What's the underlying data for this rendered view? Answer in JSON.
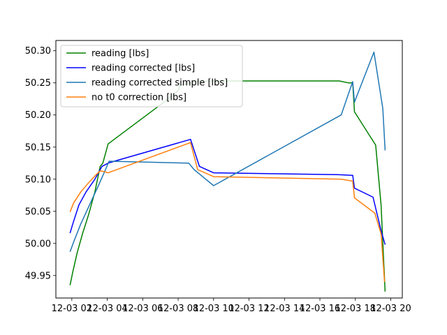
{
  "chart_data": {
    "type": "line",
    "title": "",
    "xlabel": "",
    "ylabel": "",
    "xlim": [
      1.1,
      20.65
    ],
    "ylim": [
      49.915,
      50.316
    ],
    "x_tick_values": [
      2,
      4,
      6,
      8,
      10,
      12,
      14,
      16,
      18,
      20
    ],
    "x_tick_labels": [
      "12-03 02",
      "12-03 04",
      "12-03 06",
      "12-03 08",
      "12-03 10",
      "12-03 12",
      "12-03 14",
      "12-03 16",
      "12-03 18",
      "12-03 20"
    ],
    "y_tick_values": [
      49.95,
      50.0,
      50.05,
      50.1,
      50.15,
      50.2,
      50.25,
      50.3
    ],
    "y_tick_labels": [
      "49.95",
      "50.00",
      "50.05",
      "50.10",
      "50.15",
      "50.20",
      "50.25",
      "50.30"
    ],
    "grid": false,
    "legend_position": "top-left",
    "series": [
      {
        "name": "reading [lbs]",
        "color": "#008000",
        "x": [
          1.9,
          2.05,
          2.3,
          2.6,
          2.95,
          3.3,
          3.6,
          3.75,
          4.05,
          7.2,
          8.0,
          8.1,
          9.0,
          10.0,
          16.0,
          17.1,
          17.6,
          17.85,
          17.95,
          19.15,
          19.45,
          19.68
        ],
        "y": [
          49.935,
          49.955,
          49.985,
          50.015,
          50.045,
          50.08,
          50.12,
          50.125,
          50.155,
          50.22,
          50.238,
          50.246,
          50.252,
          50.253,
          50.253,
          50.253,
          50.25,
          50.25,
          50.205,
          50.153,
          50.06,
          49.925
        ]
      },
      {
        "name": "reading corrected [lbs]",
        "color": "#0000ff",
        "x": [
          1.9,
          2.05,
          2.4,
          2.8,
          3.3,
          3.7,
          4.05,
          4.4,
          8.7,
          9.2,
          10.0,
          17.0,
          17.85,
          17.95,
          19.0,
          19.45,
          19.68
        ],
        "y": [
          50.016,
          50.03,
          50.06,
          50.08,
          50.1,
          50.12,
          50.125,
          50.128,
          50.162,
          50.12,
          50.11,
          50.107,
          50.106,
          50.086,
          50.072,
          50.02,
          49.998
        ]
      },
      {
        "name": "reading corrected simple [lbs]",
        "color": "#1f77b4",
        "x": [
          1.9,
          2.1,
          2.5,
          3.0,
          3.5,
          3.9,
          4.1,
          8.6,
          8.9,
          10.0,
          17.2,
          17.85,
          17.95,
          19.05,
          19.55,
          19.68
        ],
        "y": [
          49.987,
          50.002,
          50.03,
          50.06,
          50.09,
          50.115,
          50.128,
          50.125,
          50.115,
          50.09,
          50.2,
          50.252,
          50.22,
          50.298,
          50.21,
          50.145
        ]
      },
      {
        "name": "no t0 correction [lbs]",
        "color": "#ff7f0e",
        "x": [
          1.9,
          2.1,
          2.5,
          2.9,
          3.3,
          3.6,
          3.8,
          4.05,
          8.7,
          9.1,
          10.0,
          17.2,
          17.85,
          17.95,
          19.1,
          19.45,
          19.65
        ],
        "y": [
          50.049,
          50.063,
          50.08,
          50.093,
          50.105,
          50.113,
          50.112,
          50.11,
          50.157,
          50.115,
          50.104,
          50.1,
          50.097,
          50.071,
          50.047,
          50.015,
          49.94
        ]
      }
    ]
  }
}
